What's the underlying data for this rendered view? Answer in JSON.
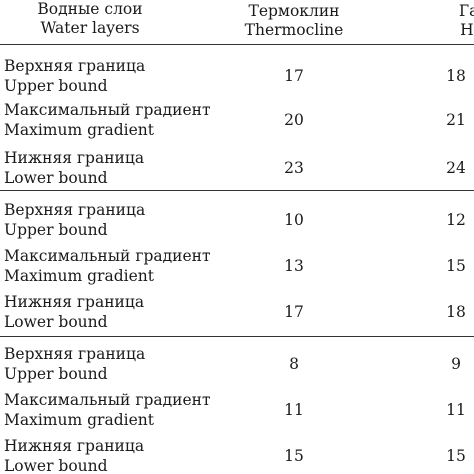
{
  "header": {
    "layers_ru": "Водные слои",
    "layers_en": "Water layers",
    "thermo_ru": "Термоклин",
    "thermo_en": "Thermocline",
    "halo_ru": "Галокл",
    "halo_en": "Halocli"
  },
  "groups": [
    {
      "rows": [
        {
          "label_ru": "Верхняя граница",
          "label_en": "Upper bound",
          "thermocline": "17",
          "halocline": "18"
        },
        {
          "label_ru": "Максимальный градиент",
          "label_en": "Maximum gradient",
          "thermocline": "20",
          "halocline": "21"
        },
        {
          "label_ru": "Нижняя граница",
          "label_en": "Lower bound",
          "thermocline": "23",
          "halocline": "24"
        }
      ]
    },
    {
      "rows": [
        {
          "label_ru": "Верхняя граница",
          "label_en": "Upper bound",
          "thermocline": "10",
          "halocline": "12"
        },
        {
          "label_ru": "Максимальный градиент",
          "label_en": "Maximum gradient",
          "thermocline": "13",
          "halocline": "15"
        },
        {
          "label_ru": "Нижняя граница",
          "label_en": "Lower bound",
          "thermocline": "17",
          "halocline": "18"
        }
      ]
    },
    {
      "rows": [
        {
          "label_ru": "Верхняя граница",
          "label_en": "Upper bound",
          "thermocline": "8",
          "halocline": "9"
        },
        {
          "label_ru": "Максимальный градиент",
          "label_en": "Maximum gradient",
          "thermocline": "11",
          "halocline": "11"
        },
        {
          "label_ru": "Нижняя граница",
          "label_en": "Lower bound",
          "thermocline": "15",
          "halocline": "15"
        }
      ]
    }
  ]
}
